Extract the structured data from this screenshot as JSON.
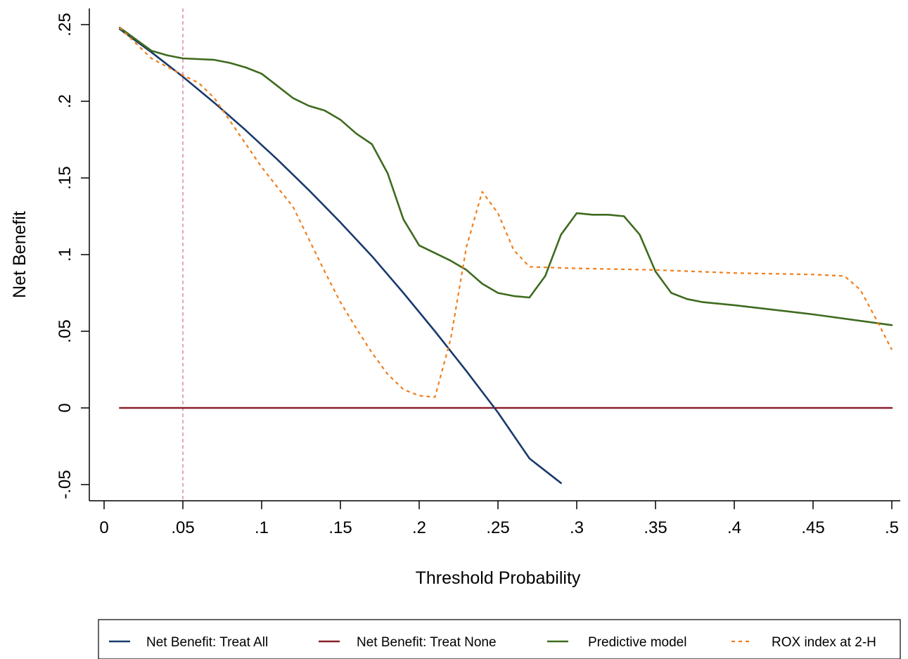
{
  "chart_data": {
    "type": "line",
    "title": "",
    "xlabel": "Threshold Probability",
    "ylabel": "Net Benefit",
    "xlim": [
      0,
      0.5
    ],
    "ylim": [
      -0.05,
      0.25
    ],
    "xticks": [
      {
        "value": 0,
        "label": "0"
      },
      {
        "value": 0.05,
        "label": ".05"
      },
      {
        "value": 0.1,
        "label": ".1"
      },
      {
        "value": 0.15,
        "label": ".15"
      },
      {
        "value": 0.2,
        "label": ".2"
      },
      {
        "value": 0.25,
        "label": ".25"
      },
      {
        "value": 0.3,
        "label": ".3"
      },
      {
        "value": 0.35,
        "label": ".35"
      },
      {
        "value": 0.4,
        "label": ".4"
      },
      {
        "value": 0.45,
        "label": ".45"
      },
      {
        "value": 0.5,
        "label": ".5"
      }
    ],
    "yticks": [
      {
        "value": -0.05,
        "label": "-.05"
      },
      {
        "value": 0,
        "label": "0"
      },
      {
        "value": 0.05,
        "label": ".05"
      },
      {
        "value": 0.1,
        "label": ".1"
      },
      {
        "value": 0.15,
        "label": ".15"
      },
      {
        "value": 0.2,
        "label": ".2"
      },
      {
        "value": 0.25,
        "label": ".25"
      }
    ],
    "grid": false,
    "legend_position": "bottom",
    "reference_line": {
      "x": 0.05,
      "color": "#e08a9a",
      "style": "dashed"
    },
    "series": [
      {
        "name": "Net Benefit: Treat All",
        "color": "#1a3a6c",
        "style": "solid",
        "x": [
          0.01,
          0.03,
          0.05,
          0.07,
          0.09,
          0.11,
          0.13,
          0.15,
          0.17,
          0.19,
          0.21,
          0.23,
          0.25,
          0.27,
          0.29
        ],
        "y": [
          0.247,
          0.232,
          0.216,
          0.199,
          0.181,
          0.162,
          0.142,
          0.121,
          0.099,
          0.075,
          0.05,
          0.024,
          -0.003,
          -0.033,
          -0.049
        ]
      },
      {
        "name": "Net Benefit: Treat None",
        "color": "#8b1f2a",
        "style": "solid",
        "x": [
          0.01,
          0.5
        ],
        "y": [
          0,
          0
        ]
      },
      {
        "name": "Predictive model",
        "color": "#3e6b1e",
        "style": "solid",
        "x": [
          0.01,
          0.03,
          0.04,
          0.05,
          0.07,
          0.08,
          0.09,
          0.1,
          0.11,
          0.12,
          0.13,
          0.14,
          0.15,
          0.16,
          0.17,
          0.18,
          0.19,
          0.2,
          0.21,
          0.22,
          0.23,
          0.24,
          0.25,
          0.26,
          0.27,
          0.28,
          0.29,
          0.3,
          0.31,
          0.32,
          0.33,
          0.34,
          0.35,
          0.36,
          0.37,
          0.38,
          0.4,
          0.45,
          0.5
        ],
        "y": [
          0.248,
          0.233,
          0.23,
          0.228,
          0.227,
          0.225,
          0.222,
          0.218,
          0.21,
          0.202,
          0.197,
          0.194,
          0.188,
          0.179,
          0.172,
          0.153,
          0.123,
          0.106,
          0.101,
          0.096,
          0.09,
          0.081,
          0.075,
          0.073,
          0.072,
          0.086,
          0.113,
          0.127,
          0.126,
          0.126,
          0.125,
          0.113,
          0.089,
          0.075,
          0.071,
          0.069,
          0.067,
          0.061,
          0.054
        ]
      },
      {
        "name": "ROX index at 2-H",
        "color": "#f07f1e",
        "style": "dashed",
        "x": [
          0.01,
          0.03,
          0.05,
          0.06,
          0.07,
          0.08,
          0.09,
          0.1,
          0.11,
          0.12,
          0.13,
          0.14,
          0.15,
          0.16,
          0.17,
          0.18,
          0.19,
          0.2,
          0.21,
          0.22,
          0.23,
          0.24,
          0.25,
          0.26,
          0.27,
          0.3,
          0.35,
          0.4,
          0.45,
          0.47,
          0.48,
          0.49,
          0.5
        ],
        "y": [
          0.248,
          0.228,
          0.217,
          0.212,
          0.202,
          0.187,
          0.172,
          0.157,
          0.144,
          0.131,
          0.11,
          0.089,
          0.069,
          0.052,
          0.036,
          0.022,
          0.012,
          0.008,
          0.007,
          0.045,
          0.105,
          0.141,
          0.127,
          0.103,
          0.092,
          0.091,
          0.09,
          0.088,
          0.087,
          0.086,
          0.077,
          0.058,
          0.038
        ]
      }
    ]
  }
}
